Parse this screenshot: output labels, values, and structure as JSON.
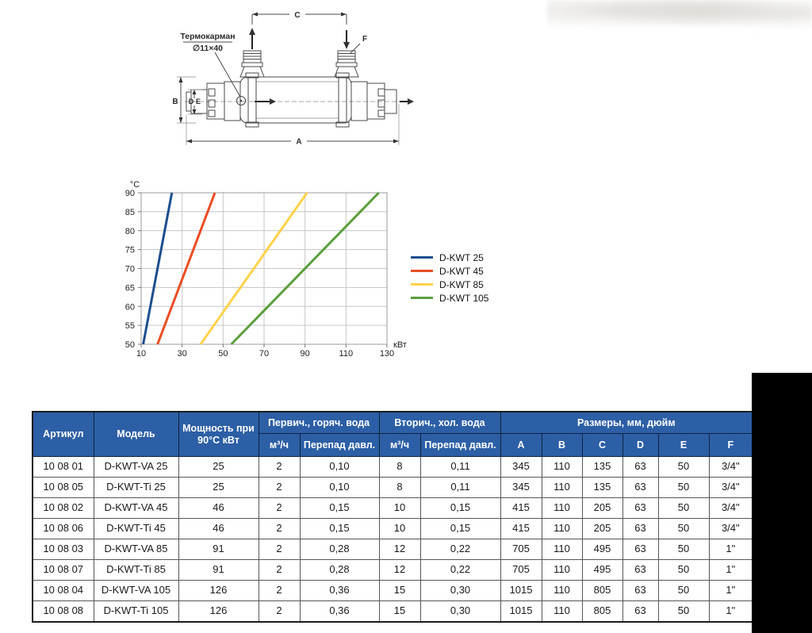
{
  "diagram": {
    "thermowell_label": "Термокарман",
    "thermowell_size": "∅11×40",
    "dims": {
      "a": "A",
      "b": "B",
      "c": "C",
      "d": "D",
      "e": "E",
      "f": "F"
    }
  },
  "chart_data": {
    "type": "line",
    "title": "",
    "xlabel": "кВт",
    "ylabel": "°C",
    "xlim": [
      10,
      130
    ],
    "ylim": [
      50,
      90
    ],
    "x_ticks": [
      10,
      30,
      50,
      70,
      90,
      110,
      130
    ],
    "y_ticks": [
      50,
      55,
      60,
      65,
      70,
      75,
      80,
      85,
      90
    ],
    "grid": true,
    "legend_position": "right",
    "series": [
      {
        "name": "D-KWT 25",
        "color": "#1d4e8f",
        "points": [
          [
            11,
            50
          ],
          [
            25,
            90
          ]
        ]
      },
      {
        "name": "D-KWT 45",
        "color": "#e94e24",
        "points": [
          [
            18,
            50
          ],
          [
            46,
            90
          ]
        ]
      },
      {
        "name": "D-KWT 85",
        "color": "#ffd24a",
        "points": [
          [
            39,
            50
          ],
          [
            91,
            90
          ]
        ]
      },
      {
        "name": "D-KWT 105",
        "color": "#5a9e3c",
        "points": [
          [
            54,
            50
          ],
          [
            126,
            90
          ]
        ]
      }
    ]
  },
  "table": {
    "header_bg": "#2C5FA5",
    "group_headers": {
      "article": "Артикул",
      "model": "Модель",
      "power": "Мощность при 90°C кВт",
      "primary": "Первич., горяч. вода",
      "secondary": "Вторич., хол. вода",
      "dimensions": "Размеры, мм, дюйм"
    },
    "sub_headers": {
      "flow": "м³/ч",
      "pressure_drop": "Перепад давл.",
      "a": "A",
      "b": "B",
      "c": "C",
      "d": "D",
      "e": "E",
      "f": "F"
    },
    "rows": [
      [
        "10 08 01",
        "D-KWT-VA 25",
        "25",
        "2",
        "0,10",
        "8",
        "0,11",
        "345",
        "110",
        "135",
        "63",
        "50",
        "3/4\""
      ],
      [
        "10 08 05",
        "D-KWT-Ti 25",
        "25",
        "2",
        "0,10",
        "8",
        "0,11",
        "345",
        "110",
        "135",
        "63",
        "50",
        "3/4\""
      ],
      [
        "10 08 02",
        "D-KWT-VA 45",
        "46",
        "2",
        "0,15",
        "10",
        "0,15",
        "415",
        "110",
        "205",
        "63",
        "50",
        "3/4\""
      ],
      [
        "10 08 06",
        "D-KWT-Ti 45",
        "46",
        "2",
        "0,15",
        "10",
        "0,15",
        "415",
        "110",
        "205",
        "63",
        "50",
        "3/4\""
      ],
      [
        "10 08 03",
        "D-KWT-VA 85",
        "91",
        "2",
        "0,28",
        "12",
        "0,22",
        "705",
        "110",
        "495",
        "63",
        "50",
        "1\""
      ],
      [
        "10 08 07",
        "D-KWT-Ti 85",
        "91",
        "2",
        "0,28",
        "12",
        "0,22",
        "705",
        "110",
        "495",
        "63",
        "50",
        "1\""
      ],
      [
        "10 08 04",
        "D-KWT-VA 105",
        "126",
        "2",
        "0,36",
        "15",
        "0,30",
        "1015",
        "110",
        "805",
        "63",
        "50",
        "1\""
      ],
      [
        "10 08 08",
        "D-KWT-Ti 105",
        "126",
        "2",
        "0,36",
        "15",
        "0,30",
        "1015",
        "110",
        "805",
        "63",
        "50",
        "1\""
      ]
    ]
  }
}
